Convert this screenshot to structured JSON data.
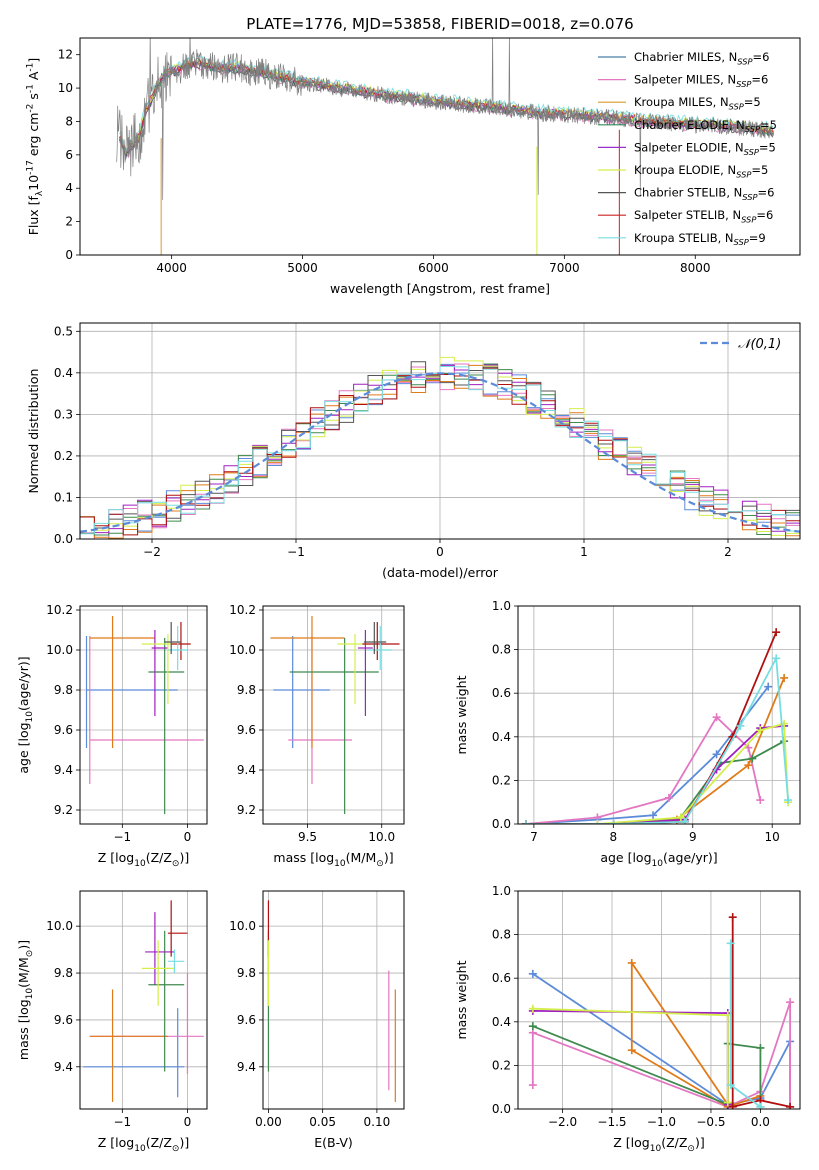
{
  "figure_title": "PLATE=1776, MJD=53858, FIBERID=0018, z=0.076",
  "legend_entries": [
    {
      "label": "Chabrier MILES, N$_{SSP}$=6",
      "color": "#4a7fa7"
    },
    {
      "label": "Salpeter MILES, N$_{SSP}$=6",
      "color": "#e377c2"
    },
    {
      "label": "Kroupa MILES, N$_{SSP}$=5",
      "color": "#d89a2a"
    },
    {
      "label": "Chabrier ELODIE, N$_{SSP}$=5",
      "color": "#2e8b57"
    },
    {
      "label": "Salpeter ELODIE, N$_{SSP}$=5",
      "color": "#9932cc"
    },
    {
      "label": "Kroupa ELODIE, N$_{SSP}$=5",
      "color": "#d4ee4a"
    },
    {
      "label": "Chabrier STELIB, N$_{SSP}$=6",
      "color": "#555555"
    },
    {
      "label": "Salpeter STELIB, N$_{SSP}$=6",
      "color": "#cc2222"
    },
    {
      "label": "Kroupa STELIB, N$_{SSP}$=9",
      "color": "#77dde0"
    }
  ],
  "chart_data": [
    {
      "id": "spectrum",
      "type": "line",
      "title": "PLATE=1776, MJD=53858, FIBERID=0018, z=0.076",
      "xlabel": "wavelength [Angstrom, rest frame]",
      "ylabel": "Flux [f$_\\lambda$10$^{-17}$ erg cm$^{-2}$ s$^{-1}$ A$^{-1}$]",
      "xlim": [
        3300,
        8800
      ],
      "ylim": [
        0,
        13
      ],
      "xticks": [
        4000,
        5000,
        6000,
        7000,
        8000
      ],
      "yticks": [
        0,
        2,
        4,
        6,
        8,
        10,
        12
      ],
      "grid": false,
      "legend_position": "top-right",
      "data_series": {
        "name": "",
        "color": "#808080",
        "x": [
          3600,
          3650,
          3700,
          3750,
          3800,
          3850,
          3900,
          3950,
          4000,
          4050,
          4100,
          4200,
          4300,
          4400,
          4500,
          4600,
          4700,
          4800,
          4900,
          5000,
          5200,
          5400,
          5600,
          5800,
          6000,
          6200,
          6400,
          6600,
          6800,
          7000,
          7200,
          7400,
          7600,
          7800,
          8000,
          8200,
          8400,
          8600
        ],
        "y": [
          7.2,
          6.0,
          6.6,
          7.0,
          8.6,
          9.4,
          10.3,
          10.8,
          11.0,
          11.1,
          11.3,
          11.5,
          11.3,
          11.2,
          11.2,
          11.0,
          10.9,
          10.7,
          10.5,
          10.3,
          10.1,
          9.8,
          9.6,
          9.4,
          9.2,
          9.0,
          8.9,
          8.7,
          8.5,
          8.4,
          8.3,
          8.2,
          8.0,
          7.9,
          7.8,
          7.7,
          7.6,
          7.4
        ]
      },
      "model_series": [
        {
          "name": "Chabrier MILES, N$_{SSP}$=6",
          "color": "#4a7fa7",
          "offset": 0.0
        },
        {
          "name": "Salpeter MILES, N$_{SSP}$=6",
          "color": "#e377c2",
          "offset": -0.15
        },
        {
          "name": "Kroupa MILES, N$_{SSP}$=5",
          "color": "#d89a2a",
          "offset": 0.1
        },
        {
          "name": "Chabrier ELODIE, N$_{SSP}$=5",
          "color": "#2e8b57",
          "offset": -0.05
        },
        {
          "name": "Salpeter ELODIE, N$_{SSP}$=5",
          "color": "#9932cc",
          "offset": 0.05
        },
        {
          "name": "Kroupa ELODIE, N$_{SSP}$=5",
          "color": "#d4ee4a",
          "offset": 0.15
        },
        {
          "name": "Chabrier STELIB, N$_{SSP}$=6",
          "color": "#555555",
          "offset": -0.1
        },
        {
          "name": "Salpeter STELIB, N$_{SSP}$=6",
          "color": "#cc2222",
          "offset": 0.08
        },
        {
          "name": "Kroupa STELIB, N$_{SSP}$=9",
          "color": "#77dde0",
          "offset": 0.3
        }
      ]
    },
    {
      "id": "residuals",
      "type": "histogram",
      "xlabel": "(data-model)/error",
      "ylabel": "Normed distribution",
      "xlim": [
        -2.5,
        2.5
      ],
      "ylim": [
        0,
        0.52
      ],
      "xticks": [
        -2,
        -1,
        0,
        1,
        2
      ],
      "yticks": [
        0.0,
        0.1,
        0.2,
        0.3,
        0.4,
        0.5
      ],
      "grid": true,
      "legend_position": "top-right",
      "legend_entries": [
        {
          "label": "$\\mathcal{N}(0,1)$",
          "color": "#5b8bd9",
          "style": "dashed"
        }
      ],
      "bin_width": 0.1,
      "gaussian": {
        "mean": 0,
        "sigma": 1,
        "color": "#5b8bd9"
      }
    },
    {
      "id": "age_vs_Z",
      "type": "errorbar",
      "xlabel": "Z [log$_{10}$(Z/Z$_\\odot$)]",
      "ylabel": "age  [log$_{10}$(age/yr)]",
      "xlim": [
        -1.65,
        0.3
      ],
      "ylim": [
        9.13,
        10.22
      ],
      "xticks": [
        -1,
        0
      ],
      "yticks": [
        9.2,
        9.4,
        9.6,
        9.8,
        10.0,
        10.2
      ],
      "grid": true,
      "points": [
        {
          "color": "#5b8bd9",
          "x": -1.55,
          "xlo": -1.55,
          "xhi": -0.15,
          "y": 9.8,
          "ylo": 9.51,
          "yhi": 10.07
        },
        {
          "color": "#e377c2",
          "x": -1.5,
          "xlo": -1.5,
          "xhi": 0.25,
          "y": 9.55,
          "ylo": 9.33,
          "yhi": 10.07
        },
        {
          "color": "#e07b1a",
          "x": -1.15,
          "xlo": -1.5,
          "xhi": -0.5,
          "y": 10.06,
          "ylo": 9.51,
          "yhi": 10.17
        },
        {
          "color": "#3f8a4f",
          "x": -0.35,
          "xlo": -0.6,
          "xhi": -0.05,
          "y": 9.89,
          "ylo": 9.18,
          "yhi": 10.06
        },
        {
          "color": "#a020c0",
          "x": -0.5,
          "xlo": -0.55,
          "xhi": -0.3,
          "y": 10.01,
          "ylo": 9.67,
          "yhi": 10.1
        },
        {
          "color": "#d4ee4a",
          "x": -0.3,
          "xlo": -0.7,
          "xhi": -0.15,
          "y": 10.03,
          "ylo": 9.73,
          "yhi": 10.08
        },
        {
          "color": "#b01010",
          "x": -0.1,
          "xlo": -0.25,
          "xhi": 0.05,
          "y": 10.03,
          "ylo": 9.95,
          "yhi": 10.14
        },
        {
          "color": "#77dde0",
          "x": -0.15,
          "xlo": -0.3,
          "xhi": 0.0,
          "y": 10.0,
          "ylo": 9.9,
          "yhi": 10.12
        },
        {
          "color": "#555555",
          "x": -0.25,
          "xlo": -0.35,
          "xhi": -0.1,
          "y": 10.04,
          "ylo": 9.98,
          "yhi": 10.14
        }
      ]
    },
    {
      "id": "age_vs_mass",
      "type": "errorbar",
      "xlabel": "mass [log$_{10}$(M/M$_\\odot$)]",
      "ylabel": "",
      "xlim": [
        9.2,
        10.15
      ],
      "ylim": [
        9.13,
        10.22
      ],
      "xticks": [
        9.5,
        10.0
      ],
      "yticks": [
        9.2,
        9.4,
        9.6,
        9.8,
        10.0,
        10.2
      ],
      "grid": true,
      "points": [
        {
          "color": "#5b8bd9",
          "x": 9.4,
          "xlo": 9.27,
          "xhi": 9.65,
          "y": 9.8,
          "ylo": 9.51,
          "yhi": 10.07
        },
        {
          "color": "#e377c2",
          "x": 9.53,
          "xlo": 9.37,
          "xhi": 9.8,
          "y": 9.55,
          "ylo": 9.33,
          "yhi": 10.07
        },
        {
          "color": "#e07b1a",
          "x": 9.53,
          "xlo": 9.25,
          "xhi": 9.75,
          "y": 10.06,
          "ylo": 9.51,
          "yhi": 10.17
        },
        {
          "color": "#3f8a4f",
          "x": 9.75,
          "xlo": 9.38,
          "xhi": 9.98,
          "y": 9.89,
          "ylo": 9.18,
          "yhi": 10.06
        },
        {
          "color": "#a020c0",
          "x": 9.89,
          "xlo": 9.84,
          "xhi": 9.94,
          "y": 10.01,
          "ylo": 9.67,
          "yhi": 10.1
        },
        {
          "color": "#d4ee4a",
          "x": 9.82,
          "xlo": 9.7,
          "xhi": 9.9,
          "y": 10.03,
          "ylo": 9.73,
          "yhi": 10.08
        },
        {
          "color": "#b01010",
          "x": 9.97,
          "xlo": 9.87,
          "xhi": 10.12,
          "y": 10.03,
          "ylo": 9.95,
          "yhi": 10.14
        },
        {
          "color": "#77dde0",
          "x": 9.99,
          "xlo": 9.9,
          "xhi": 10.07,
          "y": 10.0,
          "ylo": 9.9,
          "yhi": 10.12
        },
        {
          "color": "#555555",
          "x": 9.95,
          "xlo": 9.88,
          "xhi": 10.03,
          "y": 10.04,
          "ylo": 9.98,
          "yhi": 10.14
        }
      ]
    },
    {
      "id": "weight_vs_age",
      "type": "line",
      "xlabel": "age  [log$_{10}$(age/yr)]",
      "ylabel": "mass weight",
      "xlim": [
        6.8,
        10.35
      ],
      "ylim": [
        0,
        1.0
      ],
      "xticks": [
        7,
        8,
        9,
        10
      ],
      "yticks": [
        0.0,
        0.2,
        0.4,
        0.6,
        0.8,
        1.0
      ],
      "grid": true,
      "series": [
        {
          "color": "#5b8bd9",
          "x": [
            6.9,
            7.8,
            8.5,
            9.3,
            9.95
          ],
          "y": [
            0.0,
            0.02,
            0.04,
            0.32,
            0.63
          ]
        },
        {
          "color": "#e377c2",
          "x": [
            6.9,
            7.8,
            8.7,
            9.3,
            9.7,
            9.85
          ],
          "y": [
            0.0,
            0.03,
            0.12,
            0.49,
            0.35,
            0.11
          ]
        },
        {
          "color": "#e07b1a",
          "x": [
            6.9,
            8.0,
            8.8,
            9.7,
            10.15
          ],
          "y": [
            0.0,
            0.0,
            0.02,
            0.27,
            0.67
          ]
        },
        {
          "color": "#3f8a4f",
          "x": [
            6.9,
            8.0,
            8.85,
            9.35,
            9.75,
            10.15
          ],
          "y": [
            0.0,
            0.0,
            0.03,
            0.28,
            0.3,
            0.38
          ]
        },
        {
          "color": "#a020c0",
          "x": [
            6.9,
            8.0,
            8.9,
            9.3,
            9.85,
            10.15
          ],
          "y": [
            0.0,
            0.0,
            0.02,
            0.25,
            0.44,
            0.45
          ]
        },
        {
          "color": "#d4ee4a",
          "x": [
            6.9,
            7.8,
            8.85,
            9.85,
            10.15,
            10.2
          ],
          "y": [
            0.0,
            0.0,
            0.03,
            0.43,
            0.46,
            0.1
          ]
        },
        {
          "color": "#b01010",
          "x": [
            6.9,
            8.0,
            8.9,
            9.5,
            10.05
          ],
          "y": [
            0.0,
            0.0,
            0.01,
            0.4,
            0.88
          ]
        },
        {
          "color": "#77dde0",
          "x": [
            6.9,
            8.0,
            8.9,
            9.6,
            10.05,
            10.2
          ],
          "y": [
            0.0,
            0.0,
            0.01,
            0.45,
            0.76,
            0.11
          ]
        }
      ]
    },
    {
      "id": "mass_vs_Z",
      "type": "errorbar",
      "xlabel": "Z [log$_{10}$(Z/Z$_\\odot$)]",
      "ylabel": "mass [log$_{10}$(M/M$_\\odot$)]",
      "xlim": [
        -1.65,
        0.3
      ],
      "ylim": [
        9.22,
        10.15
      ],
      "xticks": [
        -1,
        0
      ],
      "yticks": [
        9.4,
        9.6,
        9.8,
        10.0
      ],
      "grid": true,
      "points": [
        {
          "color": "#5b8bd9",
          "x": -0.15,
          "xlo": -1.6,
          "xhi": -0.05,
          "y": 9.4,
          "ylo": 9.27,
          "yhi": 9.65
        },
        {
          "color": "#e377c2",
          "x": 0.0,
          "xlo": -1.5,
          "xhi": 0.25,
          "y": 9.53,
          "ylo": 9.37,
          "yhi": 9.8
        },
        {
          "color": "#e07b1a",
          "x": -1.15,
          "xlo": -1.5,
          "xhi": -0.3,
          "y": 9.53,
          "ylo": 9.25,
          "yhi": 9.73
        },
        {
          "color": "#3f8a4f",
          "x": -0.35,
          "xlo": -0.6,
          "xhi": -0.05,
          "y": 9.75,
          "ylo": 9.38,
          "yhi": 9.98
        },
        {
          "color": "#a020c0",
          "x": -0.5,
          "xlo": -0.65,
          "xhi": -0.2,
          "y": 9.89,
          "ylo": 9.75,
          "yhi": 10.06
        },
        {
          "color": "#d4ee4a",
          "x": -0.45,
          "xlo": -0.7,
          "xhi": -0.2,
          "y": 9.82,
          "ylo": 9.66,
          "yhi": 9.94
        },
        {
          "color": "#b01010",
          "x": -0.25,
          "xlo": -0.3,
          "xhi": 0.0,
          "y": 9.97,
          "ylo": 9.87,
          "yhi": 10.11
        },
        {
          "color": "#77dde0",
          "x": -0.2,
          "xlo": -0.3,
          "xhi": -0.05,
          "y": 9.85,
          "ylo": 9.8,
          "yhi": 9.9
        }
      ]
    },
    {
      "id": "mass_vs_EBV",
      "type": "errorbar",
      "xlabel": "E(B-V)",
      "ylabel": "",
      "xlim": [
        -0.005,
        0.125
      ],
      "ylim": [
        9.22,
        10.15
      ],
      "xticks": [
        0.0,
        0.05,
        0.1
      ],
      "yticks": [
        9.4,
        9.6,
        9.8,
        10.0
      ],
      "grid": true,
      "points": [
        {
          "color": "#3f8a4f",
          "x": 0.0,
          "xlo": 0.0,
          "xhi": 0.0,
          "y": 9.75,
          "ylo": 9.38,
          "yhi": 9.98
        },
        {
          "color": "#b01010",
          "x": 0.0,
          "xlo": 0.0,
          "xhi": 0.0,
          "y": 9.97,
          "ylo": 9.87,
          "yhi": 10.11
        },
        {
          "color": "#d4ee4a",
          "x": 0.0,
          "xlo": 0.0,
          "xhi": 0.0,
          "y": 9.82,
          "ylo": 9.66,
          "yhi": 9.94
        },
        {
          "color": "#e377c2",
          "x": 0.111,
          "xlo": 0.111,
          "xhi": 0.111,
          "y": 9.53,
          "ylo": 9.3,
          "yhi": 9.81
        },
        {
          "color": "#e07b1a",
          "x": 0.117,
          "xlo": 0.117,
          "xhi": 0.117,
          "y": 9.53,
          "ylo": 9.25,
          "yhi": 9.73
        }
      ]
    },
    {
      "id": "weight_vs_Z",
      "type": "line",
      "xlabel": "Z [log$_{10}$(Z/Z$_\\odot$)]",
      "ylabel": "mass weight",
      "xlim": [
        -2.45,
        0.4
      ],
      "ylim": [
        0,
        1.0
      ],
      "xticks": [
        -2.0,
        -1.5,
        -1.0,
        -0.5,
        0.0
      ],
      "yticks": [
        0.0,
        0.2,
        0.4,
        0.6,
        0.8,
        1.0
      ],
      "grid": true,
      "series": [
        {
          "color": "#5b8bd9",
          "x": [
            -2.3,
            -0.33,
            0.0,
            0.3,
            0.3
          ],
          "y": [
            0.62,
            0.02,
            0.05,
            0.31,
            0.01
          ]
        },
        {
          "color": "#e377c2",
          "x": [
            -2.3,
            -2.3,
            -0.33,
            0.0,
            0.3,
            0.3
          ],
          "y": [
            0.11,
            0.35,
            0.01,
            0.08,
            0.49,
            0.01
          ]
        },
        {
          "color": "#e07b1a",
          "x": [
            -0.0,
            -0.33,
            -1.3,
            -1.3,
            -0.33
          ],
          "y": [
            0.06,
            0.01,
            0.27,
            0.67,
            0.02
          ]
        },
        {
          "color": "#3f8a4f",
          "x": [
            -2.3,
            -0.33,
            -0.33,
            0.0,
            0.0
          ],
          "y": [
            0.38,
            0.02,
            0.3,
            0.28,
            0.01
          ]
        },
        {
          "color": "#a020c0",
          "x": [
            -2.3,
            -0.33,
            -0.33
          ],
          "y": [
            0.45,
            0.44,
            0.02
          ]
        },
        {
          "color": "#d4ee4a",
          "x": [
            -2.3,
            -0.33,
            -0.33
          ],
          "y": [
            0.46,
            0.43,
            0.03
          ]
        },
        {
          "color": "#b01010",
          "x": [
            -0.28,
            -0.28,
            0.0,
            0.3
          ],
          "y": [
            0.88,
            0.01,
            0.04,
            0.01
          ]
        },
        {
          "color": "#77dde0",
          "x": [
            -0.3,
            -0.3,
            0.0
          ],
          "y": [
            0.76,
            0.11,
            0.01
          ]
        }
      ]
    }
  ]
}
